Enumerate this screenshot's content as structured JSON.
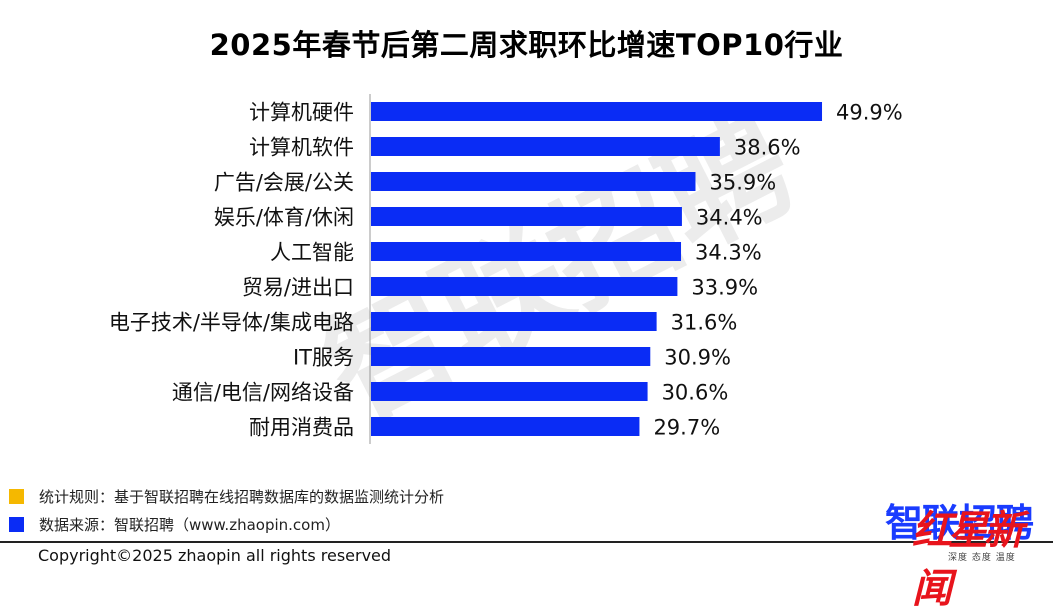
{
  "chart_data": {
    "type": "bar",
    "orientation": "horizontal",
    "title": "2025年春节后第二周求职环比增速TOP10行业",
    "categories": [
      "计算机硬件",
      "计算机软件",
      "广告/会展/公关",
      "娱乐/体育/休闲",
      "人工智能",
      "贸易/进出口",
      "电子技术/半导体/集成电路",
      "IT服务",
      "通信/电信/网络设备",
      "耐用消费品"
    ],
    "values": [
      49.9,
      38.6,
      35.9,
      34.4,
      34.3,
      33.9,
      31.6,
      30.9,
      30.6,
      29.7
    ],
    "value_labels": [
      "49.9%",
      "38.6%",
      "35.9%",
      "34.4%",
      "34.3%",
      "33.9%",
      "31.6%",
      "30.9%",
      "30.6%",
      "29.7%"
    ],
    "xlim": [
      0,
      52
    ],
    "bar_color": "#0a2cf5",
    "grid": false,
    "legend_position": "bottom-left"
  },
  "watermark": "智联招聘",
  "legend": [
    {
      "text": "统计规则：基于智联招聘在线招聘数据库的数据监测统计分析",
      "color": "#f5b800"
    },
    {
      "text": "数据来源：智联招聘（www.zhaopin.com）",
      "color": "#0a2cf5"
    }
  ],
  "footer": {
    "copyright": "Copyright©2025 zhaopin all rights reserved"
  },
  "logos": {
    "brand": "智联招聘",
    "stamp": "红星新闻",
    "stamp_sub": "深度 态度 温度"
  }
}
